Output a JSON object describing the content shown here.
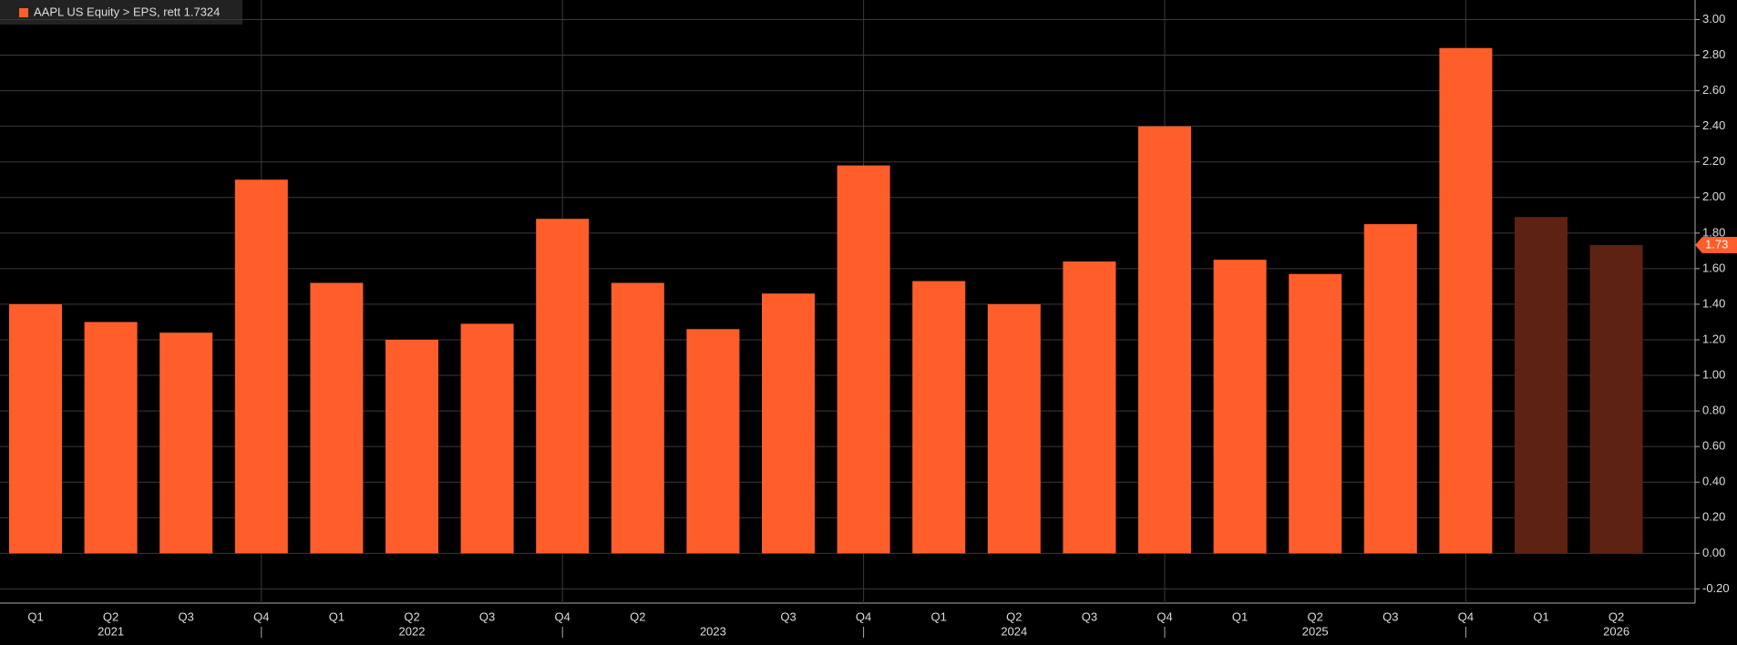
{
  "chart_data": {
    "type": "bar",
    "legend_label": "AAPL US Equity > EPS, rett 1.7324",
    "categories": [
      "Q1",
      "Q2",
      "Q3",
      "Q4",
      "Q1",
      "Q2",
      "Q3",
      "Q4",
      "Q2",
      null,
      "Q3",
      "Q4",
      "Q1",
      "Q2",
      "Q3",
      "Q4",
      "Q1",
      "Q2",
      "Q3",
      "Q4",
      "Q1",
      "Q2"
    ],
    "years": [
      null,
      "2021",
      null,
      null,
      null,
      "2022",
      null,
      null,
      null,
      "2023",
      null,
      null,
      null,
      "2024",
      null,
      null,
      null,
      "2025",
      null,
      null,
      null,
      "2026"
    ],
    "values": [
      1.4,
      1.3,
      1.24,
      2.1,
      1.52,
      1.2,
      1.29,
      1.88,
      1.52,
      1.26,
      1.46,
      2.18,
      1.53,
      1.4,
      1.64,
      2.4,
      1.65,
      1.57,
      1.85,
      2.84,
      1.89,
      1.7324
    ],
    "value_labels": [
      null,
      null,
      null,
      null,
      null,
      null,
      null,
      null,
      null,
      null,
      null,
      null,
      null,
      null,
      null,
      null,
      null,
      null,
      null,
      null,
      null,
      "1.73"
    ],
    "colors": [
      "#ff5e2b",
      "#ff5e2b",
      "#ff5e2b",
      "#ff5e2b",
      "#ff5e2b",
      "#ff5e2b",
      "#ff5e2b",
      "#ff5e2b",
      "#ff5e2b",
      "#ff5e2b",
      "#ff5e2b",
      "#ff5e2b",
      "#ff5e2b",
      "#ff5e2b",
      "#ff5e2b",
      "#ff5e2b",
      "#ff5e2b",
      "#ff5e2b",
      "#ff5e2b",
      "#ff5e2b",
      "#5e2213",
      "#5e2213"
    ],
    "ylim": [
      -0.28,
      3.11
    ],
    "yticks": [
      {
        "value": -0.2,
        "label": "-0.20"
      },
      {
        "value": 0,
        "label": "0.00"
      },
      {
        "value": 0.2,
        "label": "0.20"
      },
      {
        "value": 0.4,
        "label": "0.40"
      },
      {
        "value": 0.6,
        "label": "0.60"
      },
      {
        "value": 0.8,
        "label": "0.80"
      },
      {
        "value": 1,
        "label": "1.00"
      },
      {
        "value": 1.2,
        "label": "1.20"
      },
      {
        "value": 1.4,
        "label": "1.40"
      },
      {
        "value": 1.6,
        "label": "1.60"
      },
      {
        "value": 1.8,
        "label": "1.80"
      },
      {
        "value": 2,
        "label": "2.00"
      },
      {
        "value": 2.2,
        "label": "2.20"
      },
      {
        "value": 2.4,
        "label": "2.40"
      },
      {
        "value": 2.6,
        "label": "2.60"
      },
      {
        "value": 2.8,
        "label": "2.80"
      },
      {
        "value": 3,
        "label": "3.00"
      }
    ],
    "grid": true
  }
}
